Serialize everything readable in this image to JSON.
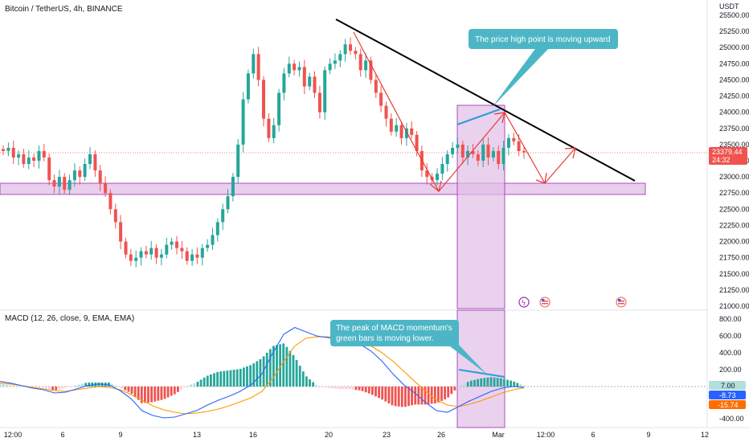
{
  "header": {
    "title": "Bitcoin / TetherUS, 4h, BINANCE",
    "currency": "USDT"
  },
  "macd_label": "MACD (12, 26, close, 9, EMA, EMA)",
  "annotations": {
    "price_note": "The price high point is moving upward",
    "macd_note_line1": "The peak of MACD momentum's",
    "macd_note_line2": "green bars is moving lower."
  },
  "price_tag": {
    "value": "23379.44",
    "countdown": "24:32"
  },
  "macd_tags": {
    "hist": "7.00",
    "macd": "-8.73",
    "signal": "-15.74"
  },
  "colors": {
    "up": "#26a69a",
    "down": "#ef5350",
    "trendline": "#000000",
    "zone_fill": "#e1bee7",
    "zone_stroke": "#9c27b0",
    "callout": "#4db6c6",
    "macd_line": "#2962ff",
    "signal_line": "#ff9800",
    "arrows": "#e53935"
  },
  "chart_data": {
    "type": "candlestick",
    "title": "Bitcoin / TetherUS, 4h, BINANCE",
    "x_tick_labels": [
      "12:00",
      "6",
      "9",
      "13",
      "16",
      "20",
      "23",
      "26",
      "Mar",
      "12:00",
      "6",
      "9",
      "12"
    ],
    "price_axis": {
      "ticks": [
        21000,
        21250,
        21500,
        21750,
        22000,
        22250,
        22500,
        22750,
        23000,
        23250,
        23500,
        23750,
        24000,
        24250,
        24500,
        24750,
        25000,
        25250,
        25500
      ],
      "ylim": [
        21000,
        25500
      ]
    },
    "macd_axis": {
      "ticks": [
        800,
        600,
        400,
        200,
        -400
      ],
      "ylim": [
        -400,
        800
      ]
    },
    "price_path": [
      23400,
      23450,
      23300,
      23350,
      23200,
      23300,
      23250,
      23400,
      23300,
      22950,
      22850,
      23000,
      22800,
      22950,
      23100,
      23000,
      23200,
      23350,
      23100,
      22900,
      22750,
      22500,
      22300,
      22000,
      21800,
      21700,
      21750,
      21850,
      21800,
      21900,
      21750,
      21800,
      21950,
      22000,
      21900,
      21850,
      21700,
      21800,
      21750,
      21900,
      21950,
      22100,
      22300,
      22500,
      22700,
      23000,
      23500,
      24200,
      24600,
      24900,
      24500,
      23900,
      23600,
      23800,
      24300,
      24600,
      24750,
      24650,
      24700,
      24400,
      24550,
      24300,
      24000,
      24650,
      24750,
      24800,
      24900,
      25050,
      24950,
      24900,
      24650,
      24800,
      24500,
      24300,
      24100,
      23900,
      23700,
      23800,
      23600,
      23750,
      23650,
      23400,
      23100,
      23000,
      22950,
      23050,
      23200,
      23350,
      23450,
      23500,
      23300,
      23400,
      23350,
      23250,
      23500,
      23300,
      23400,
      23200,
      23450,
      23600,
      23550,
      23400,
      23379.44
    ],
    "macd_path": [
      60,
      40,
      10,
      -20,
      -40,
      -80,
      -70,
      -30,
      10,
      30,
      20,
      -50,
      -150,
      -300,
      -360,
      -390,
      -380,
      -340,
      -300,
      -230,
      -170,
      -120,
      -60,
      20,
      150,
      400,
      620,
      700,
      650,
      600,
      580,
      560,
      540,
      500,
      420,
      300,
      150,
      20,
      -80,
      -200,
      -300,
      -320,
      -250,
      -180,
      -120,
      -60,
      -20,
      0,
      -8.73
    ],
    "signal_path": [
      40,
      30,
      10,
      -10,
      -30,
      -50,
      -60,
      -40,
      -20,
      0,
      -10,
      -40,
      -100,
      -170,
      -240,
      -290,
      -320,
      -340,
      -330,
      -310,
      -280,
      -240,
      -190,
      -140,
      -60,
      100,
      300,
      480,
      570,
      590,
      590,
      580,
      560,
      530,
      480,
      400,
      300,
      180,
      60,
      -60,
      -170,
      -230,
      -250,
      -220,
      -180,
      -130,
      -80,
      -40,
      -15.74
    ],
    "annotations": [
      "The price high point is moving upward",
      "The peak of MACD momentum's green bars is moving lower."
    ]
  }
}
